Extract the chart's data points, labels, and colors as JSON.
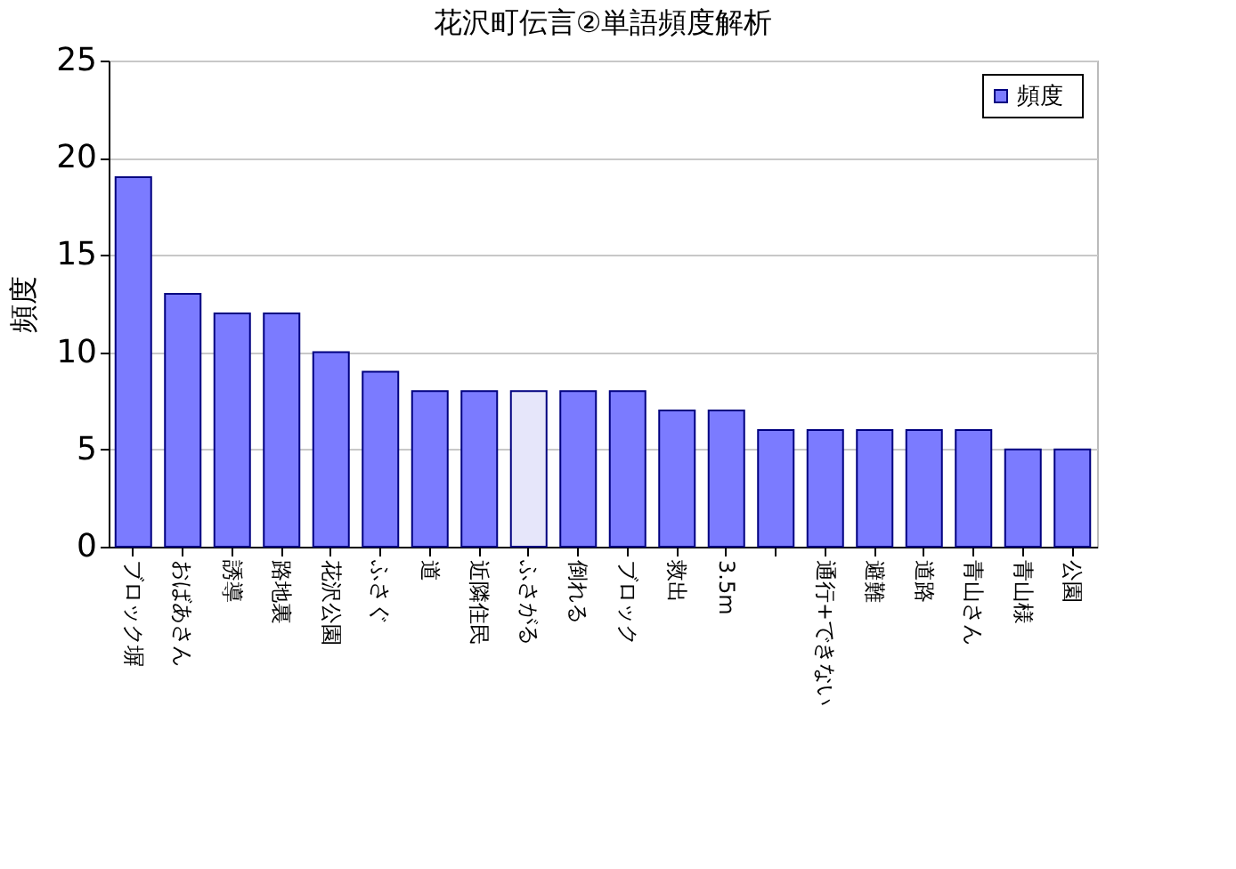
{
  "chart_data": {
    "type": "bar",
    "title": "花沢町伝言②単語頻度解析",
    "ylabel": "頻度",
    "categories": [
      "ブロック塀",
      "おばあさん",
      "誘導",
      "路地裏",
      "花沢公園",
      "ふさぐ",
      "道",
      "近隣住民",
      "ふさがる",
      "倒れる",
      "ブロック",
      "救出",
      "3.5m",
      null,
      "通行+できない",
      "避難",
      "道路",
      "青山さん",
      "青山様",
      "公園"
    ],
    "series": [
      {
        "name": "頻度",
        "color": "#7b7bff",
        "values": [
          19,
          13,
          12,
          12,
          10,
          9,
          8,
          8,
          8,
          8,
          8,
          7,
          7,
          6,
          6,
          6,
          6,
          6,
          5,
          5
        ],
        "colors": [
          "#7b7bff",
          "#7b7bff",
          "#7b7bff",
          "#7b7bff",
          "#7b7bff",
          "#7b7bff",
          "#7b7bff",
          "#7b7bff",
          "#e6e6fa",
          "#7b7bff",
          "#7b7bff",
          "#7b7bff",
          "#7b7bff",
          "#7b7bff",
          "#7b7bff",
          "#7b7bff",
          "#7b7bff",
          "#7b7bff",
          "#7b7bff",
          "#7b7bff"
        ]
      }
    ],
    "ylim": [
      0,
      25
    ],
    "yticks": [
      0,
      5,
      10,
      15,
      20,
      25
    ],
    "grid": "y",
    "legend": "top right"
  }
}
